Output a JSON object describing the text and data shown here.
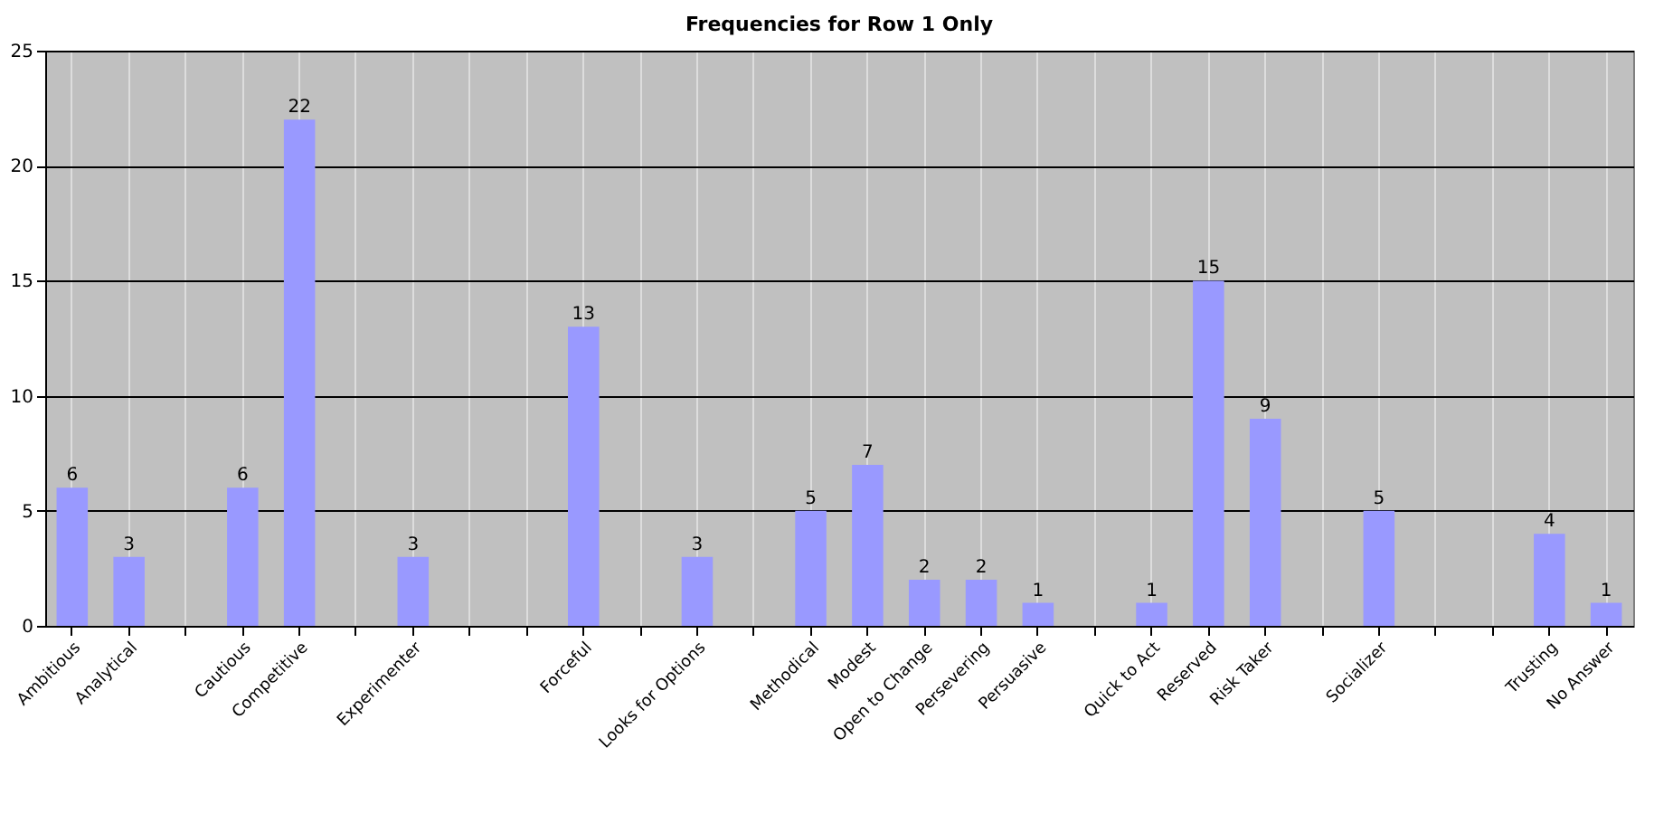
{
  "chart_data": {
    "type": "bar",
    "title": "Frequencies for Row 1 Only",
    "categories": [
      "Ambitious",
      "Analytical",
      null,
      "Cautious",
      "Competitive",
      null,
      "Experimenter",
      null,
      null,
      "Forceful",
      null,
      "Looks for Options",
      null,
      "Methodical",
      "Modest",
      "Open to Change",
      "Persevering",
      "Persuasive",
      null,
      "Quick to Act",
      "Reserved",
      "Risk Taker",
      null,
      "Socializer",
      null,
      null,
      "Trusting",
      "No Answer"
    ],
    "values": [
      6,
      3,
      null,
      6,
      22,
      null,
      3,
      null,
      null,
      13,
      null,
      3,
      null,
      5,
      7,
      2,
      2,
      1,
      null,
      1,
      15,
      9,
      null,
      5,
      null,
      null,
      4,
      1
    ],
    "color": "#9999ff",
    "ylim": [
      0,
      25
    ],
    "yticks": [
      0,
      5,
      10,
      15,
      20,
      25
    ],
    "grid": true,
    "data_labels": true
  }
}
